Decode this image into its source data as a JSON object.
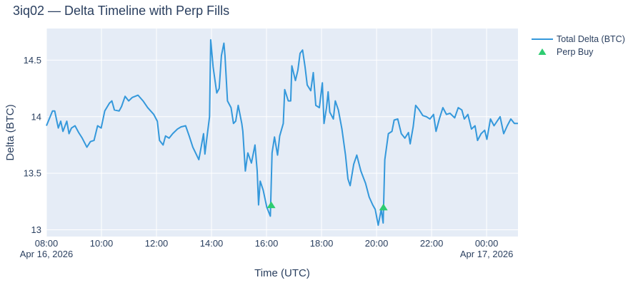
{
  "chart_data": {
    "type": "line",
    "title": "3iq02 — Delta Timeline with Perp Fills",
    "xlabel": "Time (UTC)",
    "ylabel": "Delta (BTC)",
    "x_unit": "hours since Apr 16, 2026 08:00 UTC",
    "xlim": [
      0,
      17.14
    ],
    "ylim": [
      12.94,
      14.78
    ],
    "grid": true,
    "legend_position": "top-right outside",
    "x_ticks": [
      {
        "value": 0,
        "label": "08:00",
        "sublabel": "Apr 16, 2026"
      },
      {
        "value": 2,
        "label": "10:00"
      },
      {
        "value": 4,
        "label": "12:00"
      },
      {
        "value": 6,
        "label": "14:00"
      },
      {
        "value": 8,
        "label": "16:00"
      },
      {
        "value": 10,
        "label": "18:00"
      },
      {
        "value": 12,
        "label": "20:00"
      },
      {
        "value": 14,
        "label": "22:00"
      },
      {
        "value": 16,
        "label": "00:00",
        "sublabel": "Apr 17, 2026"
      }
    ],
    "y_ticks": [
      {
        "value": 13,
        "label": "13"
      },
      {
        "value": 13.5,
        "label": "13.5"
      },
      {
        "value": 14,
        "label": "14"
      },
      {
        "value": 14.5,
        "label": "14.5"
      }
    ],
    "series": [
      {
        "name": "Total Delta (BTC)",
        "mode": "line",
        "color": "#3498db",
        "x": [
          0,
          0.22,
          0.3,
          0.43,
          0.52,
          0.6,
          0.74,
          0.82,
          0.91,
          1.04,
          1.17,
          1.3,
          1.47,
          1.6,
          1.73,
          1.86,
          1.99,
          2.12,
          2.29,
          2.38,
          2.47,
          2.64,
          2.73,
          2.86,
          2.99,
          3.12,
          3.33,
          3.51,
          3.68,
          3.9,
          4.03,
          4.11,
          4.24,
          4.33,
          4.46,
          4.59,
          4.76,
          4.89,
          5.06,
          5.19,
          5.32,
          5.54,
          5.63,
          5.71,
          5.76,
          5.84,
          5.93,
          5.97,
          6.06,
          6.19,
          6.28,
          6.36,
          6.45,
          6.49,
          6.58,
          6.71,
          6.8,
          6.88,
          6.97,
          7.1,
          7.14,
          7.23,
          7.32,
          7.45,
          7.58,
          7.66,
          7.71,
          7.77,
          7.88,
          8.01,
          8.14,
          8.2,
          8.29,
          8.4,
          8.48,
          8.61,
          8.66,
          8.79,
          8.88,
          8.92,
          9.05,
          9.14,
          9.22,
          9.31,
          9.4,
          9.48,
          9.61,
          9.7,
          9.79,
          9.92,
          10.03,
          10.09,
          10.18,
          10.24,
          10.3,
          10.43,
          10.5,
          10.61,
          10.74,
          10.87,
          10.96,
          11.04,
          11.17,
          11.28,
          11.43,
          11.6,
          11.73,
          11.86,
          11.95,
          12.06,
          12.17,
          12.24,
          12.3,
          12.43,
          12.56,
          12.64,
          12.77,
          12.9,
          13.03,
          13.16,
          13.22,
          13.33,
          13.42,
          13.55,
          13.68,
          13.81,
          13.94,
          14.07,
          14.16,
          14.28,
          14.41,
          14.54,
          14.67,
          14.84,
          14.97,
          15.1,
          15.19,
          15.32,
          15.45,
          15.58,
          15.67,
          15.8,
          15.93,
          16.01,
          16.14,
          16.27,
          16.49,
          16.62,
          16.75,
          16.88,
          17.01,
          17.14
        ],
        "y": [
          13.92,
          14.05,
          14.05,
          13.9,
          13.96,
          13.87,
          13.96,
          13.85,
          13.9,
          13.92,
          13.86,
          13.81,
          13.73,
          13.78,
          13.79,
          13.92,
          13.9,
          14.05,
          14.12,
          14.14,
          14.06,
          14.05,
          14.09,
          14.18,
          14.14,
          14.17,
          14.19,
          14.14,
          14.08,
          14.02,
          13.96,
          13.79,
          13.75,
          13.83,
          13.81,
          13.85,
          13.89,
          13.91,
          13.92,
          13.83,
          13.73,
          13.62,
          13.74,
          13.85,
          13.67,
          13.83,
          14.0,
          14.68,
          14.44,
          14.21,
          14.25,
          14.54,
          14.65,
          14.54,
          14.14,
          14.08,
          13.94,
          13.96,
          14.1,
          13.94,
          13.87,
          13.52,
          13.68,
          13.59,
          13.75,
          13.52,
          13.22,
          13.43,
          13.35,
          13.2,
          13.12,
          13.68,
          13.82,
          13.66,
          13.83,
          13.94,
          14.24,
          14.14,
          14.14,
          14.45,
          14.32,
          14.41,
          14.56,
          14.59,
          14.44,
          14.28,
          14.23,
          14.39,
          14.1,
          14.08,
          14.3,
          13.94,
          14.08,
          14.22,
          14.04,
          13.98,
          14.14,
          14.06,
          13.89,
          13.66,
          13.45,
          13.39,
          13.58,
          13.66,
          13.52,
          13.41,
          13.29,
          13.22,
          13.18,
          13.04,
          13.18,
          13.06,
          13.62,
          13.85,
          13.87,
          13.97,
          13.98,
          13.85,
          13.81,
          13.86,
          13.76,
          13.91,
          14.1,
          14.06,
          14.01,
          14.0,
          13.98,
          14.02,
          13.87,
          13.98,
          14.08,
          14.02,
          14.03,
          13.99,
          14.08,
          14.06,
          13.98,
          14.02,
          13.89,
          13.92,
          13.79,
          13.85,
          13.88,
          13.8,
          13.98,
          13.92,
          14.0,
          13.85,
          13.92,
          13.98,
          13.94,
          13.94
        ]
      },
      {
        "name": "Perp Buy",
        "mode": "markers",
        "marker": "triangle-up",
        "color": "#2ecc71",
        "x": [
          8.17,
          12.25
        ],
        "y": [
          13.22,
          13.2
        ]
      }
    ]
  }
}
